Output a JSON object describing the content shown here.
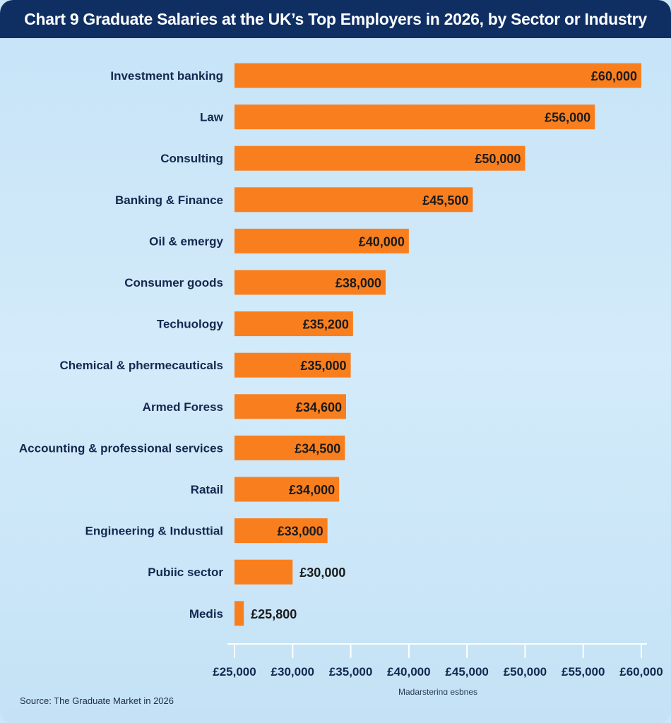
{
  "chart_data": {
    "type": "bar",
    "orientation": "horizontal",
    "title": "Chart 9  Graduate Salaries at the UK’s Top Employers in 2026, by Sector or Industry",
    "categories": [
      "Investment banking",
      "Law",
      "Consulting",
      "Banking & Finance",
      "Oil & emergy",
      "Consumer goods",
      "Techuology",
      "Chemical & phermecauticals",
      "Armed Foress",
      "Accounting & professional services",
      "Ratail",
      "Engineering & Industtial",
      "Pubiic sector",
      "Medis"
    ],
    "values": [
      60000,
      56000,
      50000,
      45500,
      40000,
      38000,
      35200,
      35000,
      34600,
      34500,
      34000,
      33000,
      30000,
      25800
    ],
    "value_labels": [
      "£60,000",
      "£56,000",
      "£50,000",
      "£45,500",
      "£40,000",
      "£38,000",
      "£35,200",
      "£35,000",
      "£34,600",
      "£34,500",
      "£34,000",
      "£33,000",
      "£30,000",
      "£25,800"
    ],
    "xlim": [
      25000,
      60000
    ],
    "xticks": [
      25000,
      30000,
      35000,
      40000,
      45000,
      50000,
      55000,
      60000
    ],
    "xtick_labels": [
      "£25,000",
      "£30,000",
      "£35,000",
      "£40,000",
      "£45,000",
      "£50,000",
      "£55,000",
      "£60,000"
    ],
    "xlabel": "Madarstering esbnes",
    "ylabel": "",
    "grid": false,
    "bar_color": "#f97f1e",
    "source": "Source:  The Graduate Market in 2026"
  }
}
